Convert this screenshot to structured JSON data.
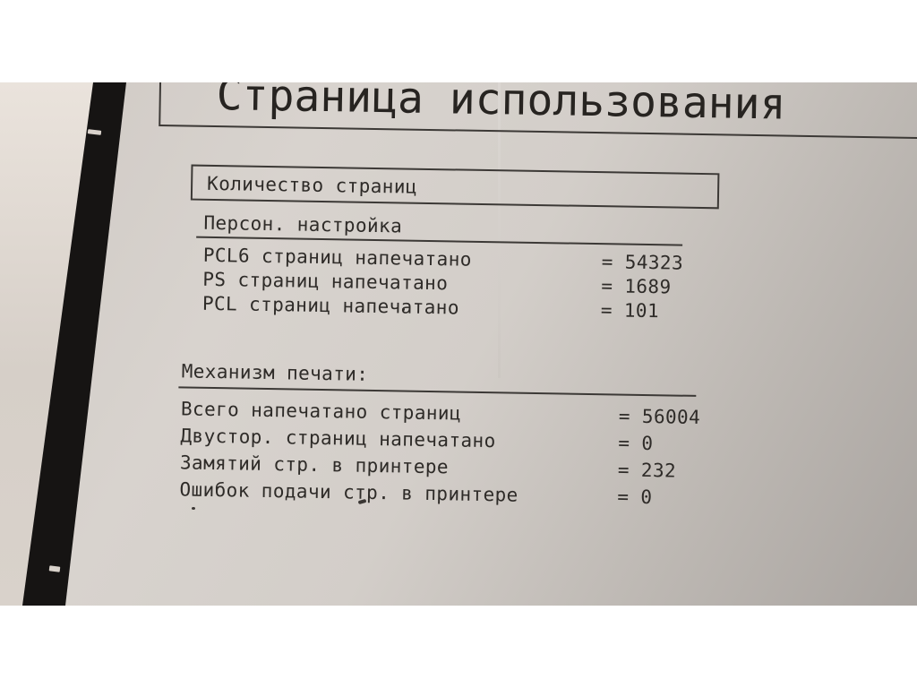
{
  "doc": {
    "title": "Страница использования",
    "count_box_label": "Количество страниц",
    "sections": [
      {
        "heading": "Персон. настройка",
        "rows": [
          {
            "label": "PCL6 страниц напечатано",
            "eq": "=",
            "value": "54323"
          },
          {
            "label": "PS страниц напечатано",
            "eq": "=",
            "value": "1689"
          },
          {
            "label": "PCL страниц напечатано",
            "eq": "=",
            "value": "101"
          }
        ]
      },
      {
        "heading": "Механизм печати:",
        "rows": [
          {
            "label": "Всего напечатано страниц",
            "eq": "=",
            "value": "56004"
          },
          {
            "label": "Двустор. страниц напечатано",
            "eq": "=",
            "value": "0"
          },
          {
            "label": "Замятий стр. в принтере",
            "eq": "=",
            "value": "232"
          },
          {
            "label": "Ошибок подачи стр. в принтере",
            "eq": "=",
            "value": "0"
          }
        ]
      }
    ],
    "colors": {
      "paper": "#d5d0cb",
      "ink": "#2e2b28",
      "letterbox": "#ffffff",
      "dark_band": "#161413"
    }
  }
}
